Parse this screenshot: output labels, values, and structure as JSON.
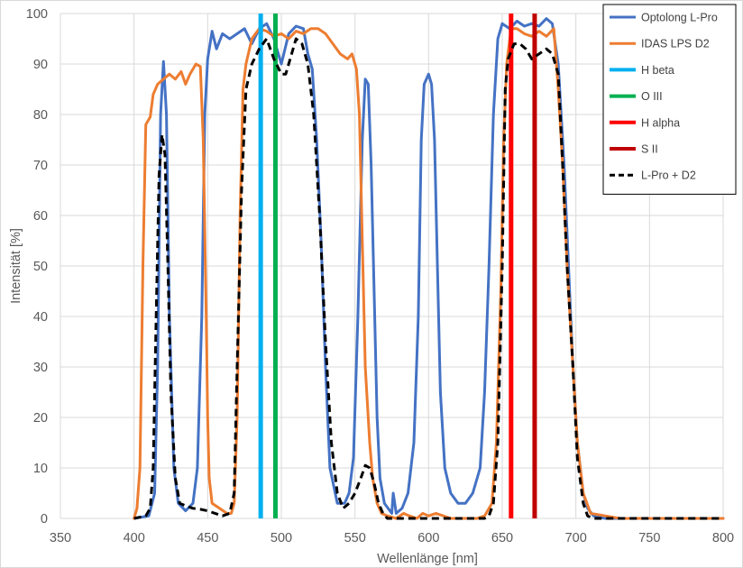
{
  "chart_data": {
    "type": "line",
    "xlabel": "Wellenlänge [nm]",
    "ylabel": "Intensität [%]",
    "xlim": [
      350,
      800
    ],
    "ylim": [
      0,
      100
    ],
    "x_ticks": [
      "350",
      "400",
      "450",
      "500",
      "550",
      "600",
      "650",
      "700",
      "750",
      "800"
    ],
    "y_ticks": [
      "0",
      "10",
      "20",
      "30",
      "40",
      "50",
      "60",
      "70",
      "80",
      "90",
      "100"
    ],
    "grid": true,
    "legend_position": "top-right",
    "series": [
      {
        "name": "Optolong L-Pro",
        "color": "#4472C4",
        "style": "solid",
        "points": [
          [
            400,
            0
          ],
          [
            410,
            0.5
          ],
          [
            414,
            5
          ],
          [
            416,
            30
          ],
          [
            418,
            80
          ],
          [
            420,
            90.5
          ],
          [
            422,
            80
          ],
          [
            424,
            40
          ],
          [
            427,
            10
          ],
          [
            430,
            3
          ],
          [
            435,
            1.5
          ],
          [
            440,
            3
          ],
          [
            443,
            10
          ],
          [
            446,
            40
          ],
          [
            448,
            80
          ],
          [
            450,
            91
          ],
          [
            453,
            96.5
          ],
          [
            456,
            93
          ],
          [
            460,
            96
          ],
          [
            465,
            95
          ],
          [
            470,
            96
          ],
          [
            475,
            97
          ],
          [
            480,
            94
          ],
          [
            485,
            97
          ],
          [
            490,
            98
          ],
          [
            495,
            95
          ],
          [
            500,
            90
          ],
          [
            505,
            96
          ],
          [
            510,
            97.5
          ],
          [
            515,
            97
          ],
          [
            518,
            92
          ],
          [
            521,
            89
          ],
          [
            524,
            75
          ],
          [
            527,
            55
          ],
          [
            530,
            30
          ],
          [
            533,
            10
          ],
          [
            538,
            3
          ],
          [
            543,
            3
          ],
          [
            546,
            5
          ],
          [
            549,
            12
          ],
          [
            552,
            40
          ],
          [
            555,
            75
          ],
          [
            557,
            87
          ],
          [
            559,
            86
          ],
          [
            561,
            70
          ],
          [
            563,
            45
          ],
          [
            565,
            20
          ],
          [
            567,
            8
          ],
          [
            570,
            3
          ],
          [
            575,
            1
          ],
          [
            576,
            5
          ],
          [
            578,
            1
          ],
          [
            582,
            2
          ],
          [
            586,
            5
          ],
          [
            590,
            15
          ],
          [
            593,
            40
          ],
          [
            595,
            75
          ],
          [
            597,
            86
          ],
          [
            600,
            88
          ],
          [
            602,
            86
          ],
          [
            604,
            75
          ],
          [
            606,
            50
          ],
          [
            608,
            25
          ],
          [
            611,
            10
          ],
          [
            615,
            5
          ],
          [
            620,
            3
          ],
          [
            625,
            3
          ],
          [
            630,
            5
          ],
          [
            635,
            10
          ],
          [
            638,
            25
          ],
          [
            641,
            50
          ],
          [
            644,
            80
          ],
          [
            647,
            95
          ],
          [
            650,
            98
          ],
          [
            655,
            97
          ],
          [
            660,
            98.5
          ],
          [
            665,
            97.5
          ],
          [
            670,
            98
          ],
          [
            675,
            97.5
          ],
          [
            680,
            99
          ],
          [
            684,
            98
          ],
          [
            688,
            90
          ],
          [
            692,
            70
          ],
          [
            695,
            50
          ],
          [
            698,
            30
          ],
          [
            701,
            15
          ],
          [
            705,
            5
          ],
          [
            708,
            2
          ],
          [
            712,
            0.5
          ],
          [
            720,
            0
          ],
          [
            800,
            0
          ]
        ]
      },
      {
        "name": "IDAS LPS D2",
        "color": "#ED7D31",
        "style": "solid",
        "points": [
          [
            400,
            0
          ],
          [
            402,
            2
          ],
          [
            404,
            10
          ],
          [
            406,
            50
          ],
          [
            408,
            78
          ],
          [
            411,
            79.5
          ],
          [
            413,
            84
          ],
          [
            416,
            86
          ],
          [
            420,
            87
          ],
          [
            424,
            88
          ],
          [
            428,
            87
          ],
          [
            432,
            88.5
          ],
          [
            435,
            86
          ],
          [
            438,
            88
          ],
          [
            442,
            90
          ],
          [
            445,
            89.5
          ],
          [
            447,
            75
          ],
          [
            449,
            40
          ],
          [
            450,
            20
          ],
          [
            451,
            8
          ],
          [
            453,
            3
          ],
          [
            458,
            2
          ],
          [
            463,
            1
          ],
          [
            466,
            1
          ],
          [
            468,
            3
          ],
          [
            470,
            20
          ],
          [
            472,
            60
          ],
          [
            474,
            85
          ],
          [
            476,
            90
          ],
          [
            480,
            95
          ],
          [
            485,
            97
          ],
          [
            490,
            96.5
          ],
          [
            495,
            95.5
          ],
          [
            500,
            96
          ],
          [
            505,
            95
          ],
          [
            510,
            96.5
          ],
          [
            515,
            96
          ],
          [
            520,
            97
          ],
          [
            525,
            97
          ],
          [
            530,
            96
          ],
          [
            535,
            94
          ],
          [
            540,
            92
          ],
          [
            545,
            91
          ],
          [
            548,
            92
          ],
          [
            551,
            89
          ],
          [
            553,
            80
          ],
          [
            555,
            55
          ],
          [
            557,
            30
          ],
          [
            560,
            15
          ],
          [
            562,
            8
          ],
          [
            565,
            3
          ],
          [
            568,
            1
          ],
          [
            572,
            0.5
          ],
          [
            578,
            0
          ],
          [
            583,
            1
          ],
          [
            587,
            0.5
          ],
          [
            592,
            0
          ],
          [
            596,
            1
          ],
          [
            600,
            0.5
          ],
          [
            605,
            1
          ],
          [
            610,
            0.5
          ],
          [
            615,
            0
          ],
          [
            625,
            0
          ],
          [
            633,
            0
          ],
          [
            638,
            0.5
          ],
          [
            643,
            3
          ],
          [
            646,
            15
          ],
          [
            649,
            45
          ],
          [
            651,
            75
          ],
          [
            653,
            90
          ],
          [
            656,
            97
          ],
          [
            660,
            97
          ],
          [
            665,
            96
          ],
          [
            670,
            95.5
          ],
          [
            675,
            96.5
          ],
          [
            680,
            95.5
          ],
          [
            685,
            97
          ],
          [
            688,
            85
          ],
          [
            691,
            70
          ],
          [
            694,
            50
          ],
          [
            698,
            30
          ],
          [
            701,
            15
          ],
          [
            705,
            5
          ],
          [
            710,
            1
          ],
          [
            720,
            0.5
          ],
          [
            730,
            0
          ],
          [
            800,
            0
          ]
        ]
      },
      {
        "name": "H beta",
        "color": "#00B0F0",
        "style": "vline",
        "x": 486
      },
      {
        "name": "O III",
        "color": "#00B050",
        "style": "vline",
        "x": 496
      },
      {
        "name": "H alpha",
        "color": "#FF0000",
        "style": "vline",
        "x": 656
      },
      {
        "name": "S II",
        "color": "#C00000",
        "style": "vline",
        "x": 672
      },
      {
        "name": "L-Pro + D2",
        "color": "#000000",
        "style": "dashed",
        "points": [
          [
            400,
            0
          ],
          [
            408,
            0.5
          ],
          [
            411,
            2
          ],
          [
            413,
            10
          ],
          [
            415,
            40
          ],
          [
            417,
            68
          ],
          [
            419,
            76
          ],
          [
            421,
            72
          ],
          [
            423,
            50
          ],
          [
            425,
            25
          ],
          [
            428,
            8
          ],
          [
            431,
            3
          ],
          [
            435,
            2.5
          ],
          [
            440,
            2
          ],
          [
            445,
            1.8
          ],
          [
            450,
            1.5
          ],
          [
            455,
            1
          ],
          [
            460,
            0.5
          ],
          [
            465,
            1
          ],
          [
            468,
            5
          ],
          [
            470,
            30
          ],
          [
            473,
            65
          ],
          [
            476,
            85
          ],
          [
            480,
            90
          ],
          [
            485,
            93
          ],
          [
            490,
            95
          ],
          [
            495,
            91
          ],
          [
            500,
            88
          ],
          [
            503,
            88
          ],
          [
            506,
            91
          ],
          [
            510,
            95
          ],
          [
            514,
            94
          ],
          [
            518,
            90
          ],
          [
            522,
            80
          ],
          [
            526,
            60
          ],
          [
            530,
            35
          ],
          [
            534,
            15
          ],
          [
            538,
            5
          ],
          [
            542,
            2
          ],
          [
            546,
            3
          ],
          [
            550,
            5
          ],
          [
            554,
            8
          ],
          [
            557,
            10.5
          ],
          [
            560,
            10
          ],
          [
            563,
            7
          ],
          [
            566,
            3
          ],
          [
            569,
            1
          ],
          [
            572,
            0
          ],
          [
            580,
            0
          ],
          [
            600,
            0
          ],
          [
            620,
            0
          ],
          [
            638,
            0
          ],
          [
            641,
            0.5
          ],
          [
            644,
            3
          ],
          [
            647,
            15
          ],
          [
            650,
            50
          ],
          [
            652,
            85
          ],
          [
            654,
            91
          ],
          [
            658,
            94
          ],
          [
            662,
            94
          ],
          [
            666,
            93
          ],
          [
            670,
            91
          ],
          [
            675,
            92
          ],
          [
            680,
            93
          ],
          [
            684,
            92
          ],
          [
            688,
            88
          ],
          [
            691,
            70
          ],
          [
            694,
            50
          ],
          [
            698,
            30
          ],
          [
            701,
            12
          ],
          [
            705,
            3
          ],
          [
            708,
            0.5
          ],
          [
            712,
            0
          ],
          [
            800,
            0
          ]
        ]
      }
    ]
  }
}
